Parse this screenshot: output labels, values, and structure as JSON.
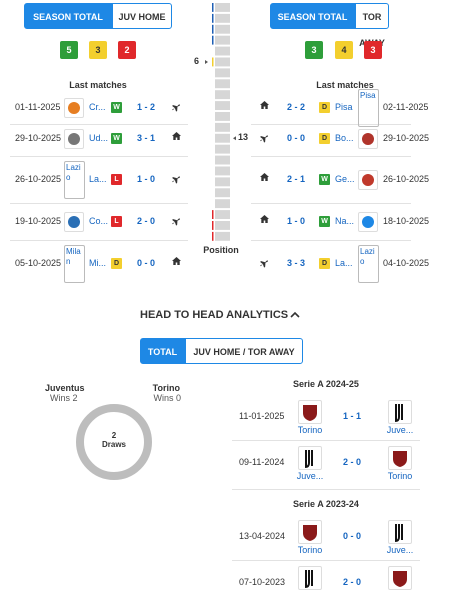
{
  "left": {
    "tabs": [
      "SEASON TOTAL",
      "JUV HOME"
    ],
    "form": [
      5,
      3,
      2
    ],
    "title": "Last matches",
    "matches": [
      {
        "date": "01-11-2025",
        "team": "Cr...",
        "result": "W",
        "score": "1 - 2"
      },
      {
        "date": "29-10-2025",
        "team": "Ud...",
        "result": "W",
        "score": "3 - 1"
      },
      {
        "date": "26-10-2025",
        "logo_alt": "Lazio",
        "team": "La...",
        "result": "L",
        "score": "1 - 0"
      },
      {
        "date": "19-10-2025",
        "team": "Co...",
        "result": "L",
        "score": "2 - 0"
      },
      {
        "date": "05-10-2025",
        "logo_alt": "Milan",
        "team": "Mi...",
        "result": "D",
        "score": "0 - 0"
      }
    ]
  },
  "right": {
    "tabs": [
      "SEASON TOTAL",
      "TOR AWAY"
    ],
    "form": [
      3,
      4,
      3
    ],
    "title": "Last matches",
    "matches": [
      {
        "date": "02-11-2025",
        "logo_alt": "Pisa",
        "team": "Pisa",
        "result": "D",
        "score": "2 - 2"
      },
      {
        "date": "29-10-2025",
        "team": "Bo...",
        "result": "D",
        "score": "0 - 0"
      },
      {
        "date": "26-10-2025",
        "team": "Ge...",
        "result": "W",
        "score": "2 - 1"
      },
      {
        "date": "18-10-2025",
        "team": "Na...",
        "result": "W",
        "score": "1 - 0"
      },
      {
        "date": "04-10-2025",
        "logo_alt": "Lazio",
        "team": "La...",
        "result": "D",
        "score": "3 - 3"
      }
    ]
  },
  "position": {
    "juv": 6,
    "tor": 13,
    "label": "Position"
  },
  "h2h": {
    "title": "HEAD TO HEAD ANALYTICS",
    "tabs": [
      "TOTAL",
      "JUV HOME / TOR AWAY"
    ],
    "team1": "Juventus",
    "team1_wins": "Wins 2",
    "team2": "Torino",
    "team2_wins": "Wins 0",
    "draws": 2,
    "draws_label": "Draws",
    "seasons": [
      {
        "name": "Serie A 2024-25",
        "matches": [
          {
            "date": "11-01-2025",
            "home": "Torino",
            "score": "1 - 1",
            "away": "Juve..."
          },
          {
            "date": "09-11-2024",
            "home": "Juve...",
            "score": "2 - 0",
            "away": "Torino"
          }
        ]
      },
      {
        "name": "Serie A 2023-24",
        "matches": [
          {
            "date": "13-04-2024",
            "home": "Torino",
            "score": "0 - 0",
            "away": "Juve..."
          },
          {
            "date": "07-10-2023",
            "score": "2 - 0"
          }
        ]
      }
    ]
  }
}
